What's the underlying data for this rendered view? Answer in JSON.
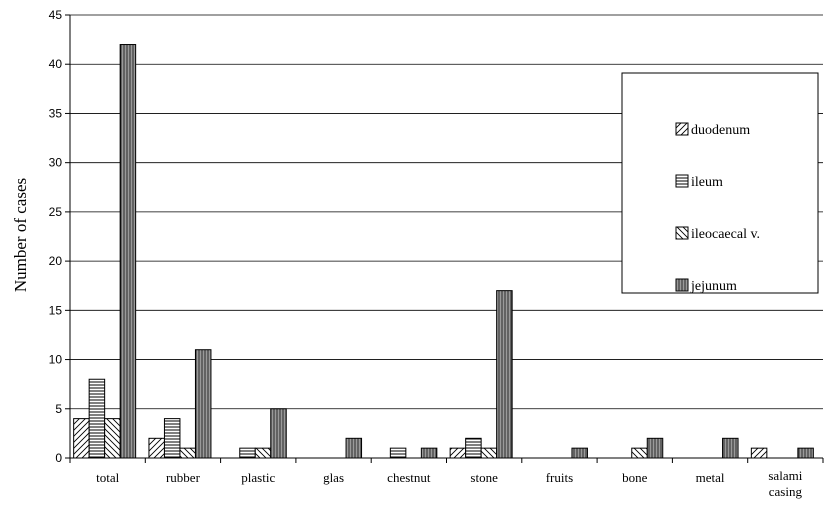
{
  "chart_data": {
    "type": "bar",
    "title": "",
    "xlabel": "",
    "ylabel": "Number of cases",
    "ylim": [
      0,
      45
    ],
    "yticks": [
      0,
      5,
      10,
      15,
      20,
      25,
      30,
      35,
      40,
      45
    ],
    "grid": true,
    "legend_position": "right",
    "categories": [
      "total",
      "rubber",
      "plastic",
      "glas",
      "chestnut",
      "stone",
      "fruits",
      "bone",
      "metal",
      "salami casing"
    ],
    "series": [
      {
        "name": "duodenum",
        "pattern": "diagonal-hatch",
        "values": [
          4,
          2,
          0,
          0,
          0,
          1,
          0,
          0,
          0,
          1
        ]
      },
      {
        "name": "ileum",
        "pattern": "horizontal-lines",
        "values": [
          8,
          4,
          1,
          0,
          1,
          2,
          0,
          0,
          0,
          0
        ]
      },
      {
        "name": "ileocaecal v.",
        "pattern": "back-diagonal-hatch",
        "values": [
          4,
          1,
          1,
          0,
          0,
          1,
          0,
          1,
          0,
          0
        ]
      },
      {
        "name": "jejunum",
        "pattern": "vertical-lines",
        "values": [
          42,
          11,
          5,
          2,
          1,
          17,
          1,
          2,
          2,
          1
        ]
      }
    ]
  }
}
